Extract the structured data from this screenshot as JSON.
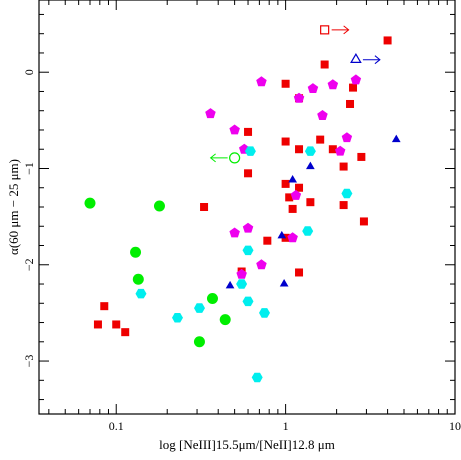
{
  "chart_data": {
    "type": "scatter",
    "title": "",
    "xlabel": "log [NeIII]15.5μm/[NeII]12.8 μm",
    "ylabel": "α(60 μm − 25 μm)",
    "x_scale": "log",
    "xlim": [
      0.035,
      10
    ],
    "ylim": [
      -3.55,
      0.75
    ],
    "x_ticks": [
      {
        "value": 0.1,
        "label": "0.1"
      },
      {
        "value": 1,
        "label": "1"
      },
      {
        "value": 10,
        "label": "10"
      }
    ],
    "y_ticks": [
      {
        "value": 0,
        "label": "0"
      },
      {
        "value": -1,
        "label": "−1"
      },
      {
        "value": -2,
        "label": "−2"
      },
      {
        "value": -3,
        "label": "−3"
      }
    ],
    "grid": false,
    "series": [
      {
        "marker": "square",
        "color": "#ee0000",
        "points": [
          [
            4.0,
            0.33
          ],
          [
            1.7,
            0.08
          ],
          [
            1.0,
            -0.12
          ],
          [
            2.5,
            -0.16
          ],
          [
            2.4,
            -0.33
          ],
          [
            1.2,
            -0.27
          ],
          [
            0.6,
            -0.62
          ],
          [
            1.6,
            -0.7
          ],
          [
            1.0,
            -0.72
          ],
          [
            1.2,
            -0.8
          ],
          [
            1.9,
            -0.8
          ],
          [
            2.8,
            -0.88
          ],
          [
            0.6,
            -1.05
          ],
          [
            2.2,
            -0.98
          ],
          [
            1.0,
            -1.16
          ],
          [
            1.2,
            -1.2
          ],
          [
            1.1,
            -1.42
          ],
          [
            1.05,
            -1.3
          ],
          [
            0.33,
            -1.4
          ],
          [
            1.4,
            -1.35
          ],
          [
            2.2,
            -1.38
          ],
          [
            2.9,
            -1.55
          ],
          [
            0.78,
            -1.75
          ],
          [
            1.0,
            -1.72
          ],
          [
            0.55,
            -2.07
          ],
          [
            1.2,
            -2.08
          ],
          [
            0.085,
            -2.43
          ],
          [
            0.078,
            -2.62
          ],
          [
            0.1,
            -2.62
          ],
          [
            0.113,
            -2.7
          ]
        ]
      },
      {
        "marker": "square-open",
        "color": "#ee0000",
        "points": [
          [
            1.7,
            0.44
          ]
        ],
        "arrow": "right"
      },
      {
        "marker": "pentagon",
        "color": "#ee00ee",
        "points": [
          [
            0.72,
            -0.1
          ],
          [
            1.45,
            -0.17
          ],
          [
            2.6,
            -0.08
          ],
          [
            1.9,
            -0.13
          ],
          [
            1.2,
            -0.27
          ],
          [
            0.36,
            -0.43
          ],
          [
            0.5,
            -0.6
          ],
          [
            2.3,
            -0.68
          ],
          [
            1.65,
            -0.45
          ],
          [
            0.57,
            -0.8
          ],
          [
            2.1,
            -0.82
          ],
          [
            1.15,
            -1.28
          ],
          [
            0.6,
            -1.62
          ],
          [
            0.5,
            -1.67
          ],
          [
            1.1,
            -1.72
          ],
          [
            0.72,
            -2.0
          ],
          [
            0.55,
            -2.1
          ]
        ]
      },
      {
        "marker": "triangle",
        "color": "#0000cc",
        "points": [
          [
            4.5,
            -0.7
          ],
          [
            1.4,
            -0.98
          ],
          [
            1.1,
            -1.12
          ],
          [
            0.95,
            -1.7
          ],
          [
            0.47,
            -2.22
          ],
          [
            0.98,
            -2.2
          ]
        ]
      },
      {
        "marker": "triangle-open",
        "color": "#0000cc",
        "points": [
          [
            2.6,
            0.13
          ]
        ],
        "arrow": "right"
      },
      {
        "marker": "hexagon",
        "color": "#00eeee",
        "points": [
          [
            0.62,
            -0.82
          ],
          [
            1.4,
            -0.82
          ],
          [
            2.3,
            -1.26
          ],
          [
            0.6,
            -1.85
          ],
          [
            1.35,
            -1.65
          ],
          [
            0.14,
            -2.3
          ],
          [
            0.23,
            -2.55
          ],
          [
            0.31,
            -2.45
          ],
          [
            0.6,
            -2.38
          ],
          [
            0.75,
            -2.5
          ],
          [
            0.55,
            -2.2
          ],
          [
            0.68,
            -3.17
          ]
        ]
      },
      {
        "marker": "circle",
        "color": "#00ee00",
        "points": [
          [
            0.07,
            -1.36
          ],
          [
            0.18,
            -1.39
          ],
          [
            0.13,
            -1.87
          ],
          [
            0.135,
            -2.15
          ],
          [
            0.37,
            -2.35
          ],
          [
            0.44,
            -2.57
          ],
          [
            0.31,
            -2.8
          ]
        ]
      },
      {
        "marker": "circle-open",
        "color": "#00ee00",
        "points": [
          [
            0.5,
            -0.89
          ]
        ],
        "arrow": "left"
      }
    ]
  }
}
